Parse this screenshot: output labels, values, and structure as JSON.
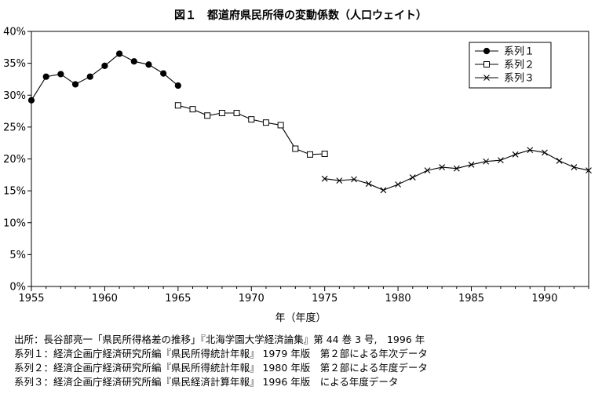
{
  "chart_data": {
    "type": "line",
    "title": "図１　都道府県民所得の変動係数（人口ウェイト）",
    "xlabel": "年（年度）",
    "ylabel": "",
    "xlim": [
      1955,
      1993
    ],
    "ylim": [
      0,
      40
    ],
    "xticks": [
      "1955",
      "1960",
      "1965",
      "1970",
      "1975",
      "1980",
      "1985",
      "1990"
    ],
    "xtick_values": [
      1955,
      1960,
      1965,
      1970,
      1975,
      1980,
      1985,
      1990
    ],
    "yticks": [
      "0%",
      "5%",
      "10%",
      "15%",
      "20%",
      "25%",
      "30%",
      "35%",
      "40%"
    ],
    "ytick_values": [
      0,
      5,
      10,
      15,
      20,
      25,
      30,
      35,
      40
    ],
    "grid": false,
    "legend_position": "top-right",
    "series": [
      {
        "name": "系列１",
        "marker": "filled-circle",
        "x": [
          1955,
          1956,
          1957,
          1958,
          1959,
          1960,
          1961,
          1962,
          1963,
          1964,
          1965
        ],
        "values": [
          29.2,
          32.9,
          33.3,
          31.7,
          32.9,
          34.6,
          36.5,
          35.3,
          34.8,
          33.4,
          31.5
        ]
      },
      {
        "name": "系列２",
        "marker": "open-square",
        "x": [
          1965,
          1966,
          1967,
          1968,
          1969,
          1970,
          1971,
          1972,
          1973,
          1974,
          1975
        ],
        "values": [
          28.4,
          27.8,
          26.8,
          27.2,
          27.2,
          26.2,
          25.7,
          25.3,
          21.6,
          20.7,
          20.8
        ]
      },
      {
        "name": "系列３",
        "marker": "x-cross",
        "x": [
          1975,
          1976,
          1977,
          1978,
          1979,
          1980,
          1981,
          1982,
          1983,
          1984,
          1985,
          1986,
          1987,
          1988,
          1989,
          1990,
          1991,
          1992,
          1993
        ],
        "values": [
          16.9,
          16.6,
          16.8,
          16.1,
          15.1,
          16.0,
          17.1,
          18.2,
          18.7,
          18.5,
          19.1,
          19.6,
          19.8,
          20.7,
          21.4,
          21.0,
          19.7,
          18.7,
          18.2
        ]
      }
    ]
  },
  "notes": [
    "出所：長谷部亮一「県民所得格差の推移」『北海学園大学経済論集』第 44 巻 3 号,　1996 年",
    "系列１：経済企画庁経済研究所編『県民所得統計年報』 1979 年版　第２部による年次データ",
    "系列２：経済企画庁経済研究所編『県民所得統計年報』 1980 年版　第２部による年度データ",
    "系列３：経済企画庁経済研究所編『県民経済計算年報』 1996 年版　による年度データ"
  ]
}
